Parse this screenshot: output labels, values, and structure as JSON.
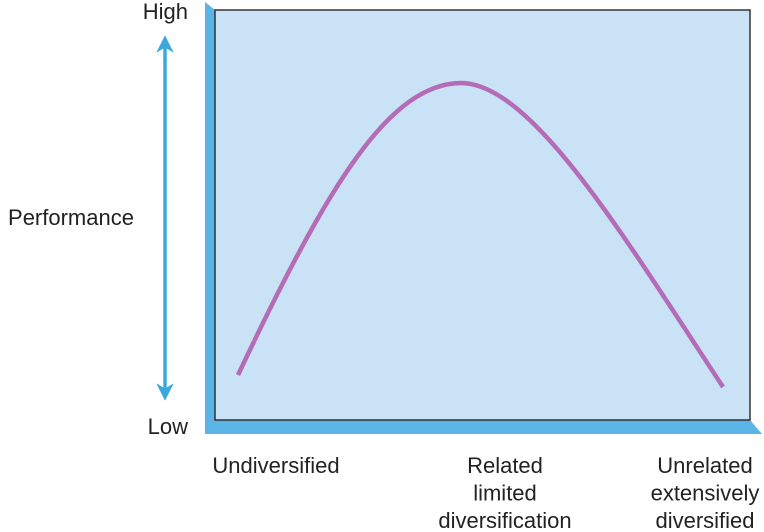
{
  "y_axis": {
    "label": "Performance",
    "high": "High",
    "low": "Low"
  },
  "x_labels": [
    [
      "Undiversified"
    ],
    [
      "Related",
      "limited",
      "diversification"
    ],
    [
      "Unrelated",
      "extensively",
      "diversified"
    ]
  ]
}
